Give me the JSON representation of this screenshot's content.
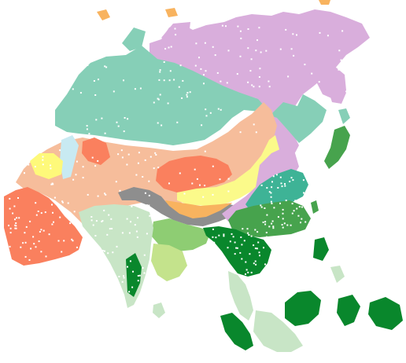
{
  "map": {
    "background": "#ffffff",
    "dot_color": "#ffffff",
    "regions": [
      {
        "id": "arctic-tundra",
        "color": "#d9aedc"
      },
      {
        "id": "northern-taiga",
        "color": "#86cfb7"
      },
      {
        "id": "temperate-steppe",
        "color": "#f6bd9b"
      },
      {
        "id": "hot-desert",
        "color": "#fa805e"
      },
      {
        "id": "semi-desert",
        "color": "#f8b35f"
      },
      {
        "id": "dry-desert",
        "color": "#fbfa8a"
      },
      {
        "id": "high-mountain",
        "color": "#8e8e8e"
      },
      {
        "id": "temperate-forest",
        "color": "#3eb396"
      },
      {
        "id": "subtropical-forest",
        "color": "#47a34d"
      },
      {
        "id": "tropical-forest",
        "color": "#09872c"
      },
      {
        "id": "monsoon-savanna",
        "color": "#c8e5c6"
      },
      {
        "id": "monsoon-grassland",
        "color": "#c4e38c"
      },
      {
        "id": "steppe-grassland",
        "color": "#8ecd73"
      },
      {
        "id": "water",
        "color": "#c8eaf2"
      },
      {
        "id": "salt-lake-yellow",
        "color": "#fef97a"
      }
    ]
  }
}
